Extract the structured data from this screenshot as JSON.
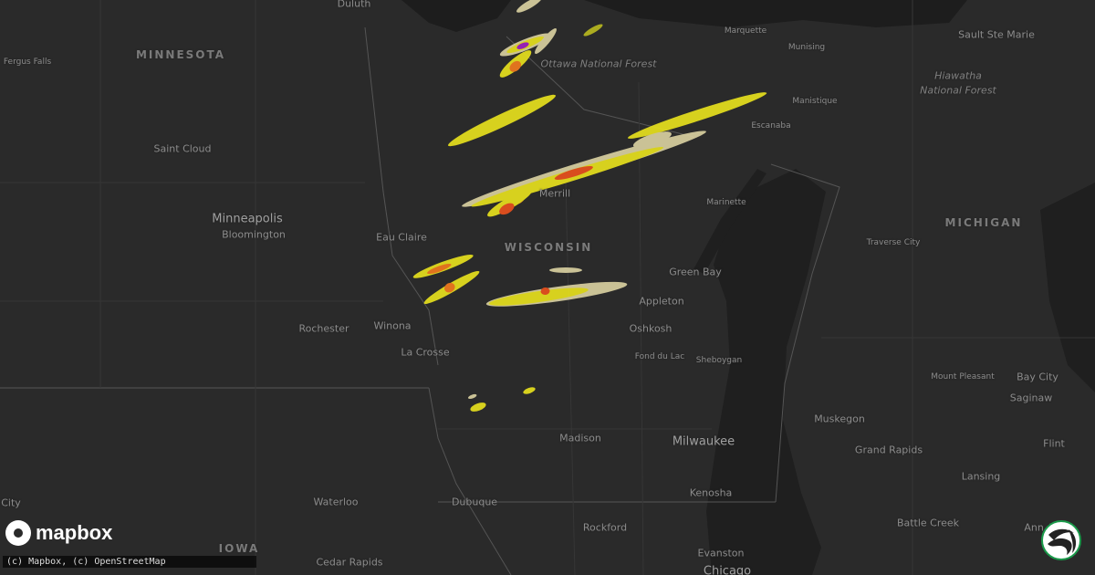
{
  "map": {
    "states": {
      "minnesota": "MINNESOTA",
      "wisconsin": "WISCONSIN",
      "michigan": "MICHIGAN",
      "iowa": "IOWA"
    },
    "forests": {
      "ottawa": "Ottawa National Forest",
      "hiawatha_1": "Hiawatha",
      "hiawatha_2": "National Forest"
    },
    "cities": {
      "duluth": "Duluth",
      "fergus_falls": "Fergus Falls",
      "saint_cloud": "Saint Cloud",
      "minneapolis": "Minneapolis",
      "bloomington": "Bloomington",
      "eau_claire": "Eau Claire",
      "rochester": "Rochester",
      "winona": "Winona",
      "la_crosse": "La Crosse",
      "merrill": "Merrill",
      "marinette": "Marinette",
      "green_bay": "Green Bay",
      "appleton": "Appleton",
      "oshkosh": "Oshkosh",
      "fond_du_lac": "Fond du Lac",
      "sheboygan": "Sheboygan",
      "madison": "Madison",
      "milwaukee": "Milwaukee",
      "kenosha": "Kenosha",
      "rockford": "Rockford",
      "evanston": "Evanston",
      "chicago": "Chicago",
      "dubuque": "Dubuque",
      "waterloo": "Waterloo",
      "cedar_rapids": "Cedar Rapids",
      "city": "City",
      "marquette": "Marquette",
      "munising": "Munising",
      "sault_ste_marie": "Sault Ste Marie",
      "manistique": "Manistique",
      "escanaba": "Escanaba",
      "traverse_city": "Traverse City",
      "mount_pleasant": "Mount Pleasant",
      "bay_city": "Bay City",
      "saginaw": "Saginaw",
      "muskegon": "Muskegon",
      "grand_rapids": "Grand Rapids",
      "flint": "Flint",
      "lansing": "Lansing",
      "battle_creek": "Battle Creek",
      "ann_arbor": "Ann Arbor"
    },
    "colors": {
      "land": "#2a2a2a",
      "water": "#1d1d1d",
      "radar_light": "#d8cfa0",
      "radar_yellow": "#e6e01e",
      "radar_orange": "#f07a1e",
      "radar_red": "#e8501e",
      "radar_purple": "#a020c0"
    }
  },
  "logo": {
    "text": "mapbox",
    "icon": "mapbox-pin-icon"
  },
  "attribution": "(c) Mapbox, (c) OpenStreetMap",
  "brand_icon": "green-wave-circle-icon"
}
